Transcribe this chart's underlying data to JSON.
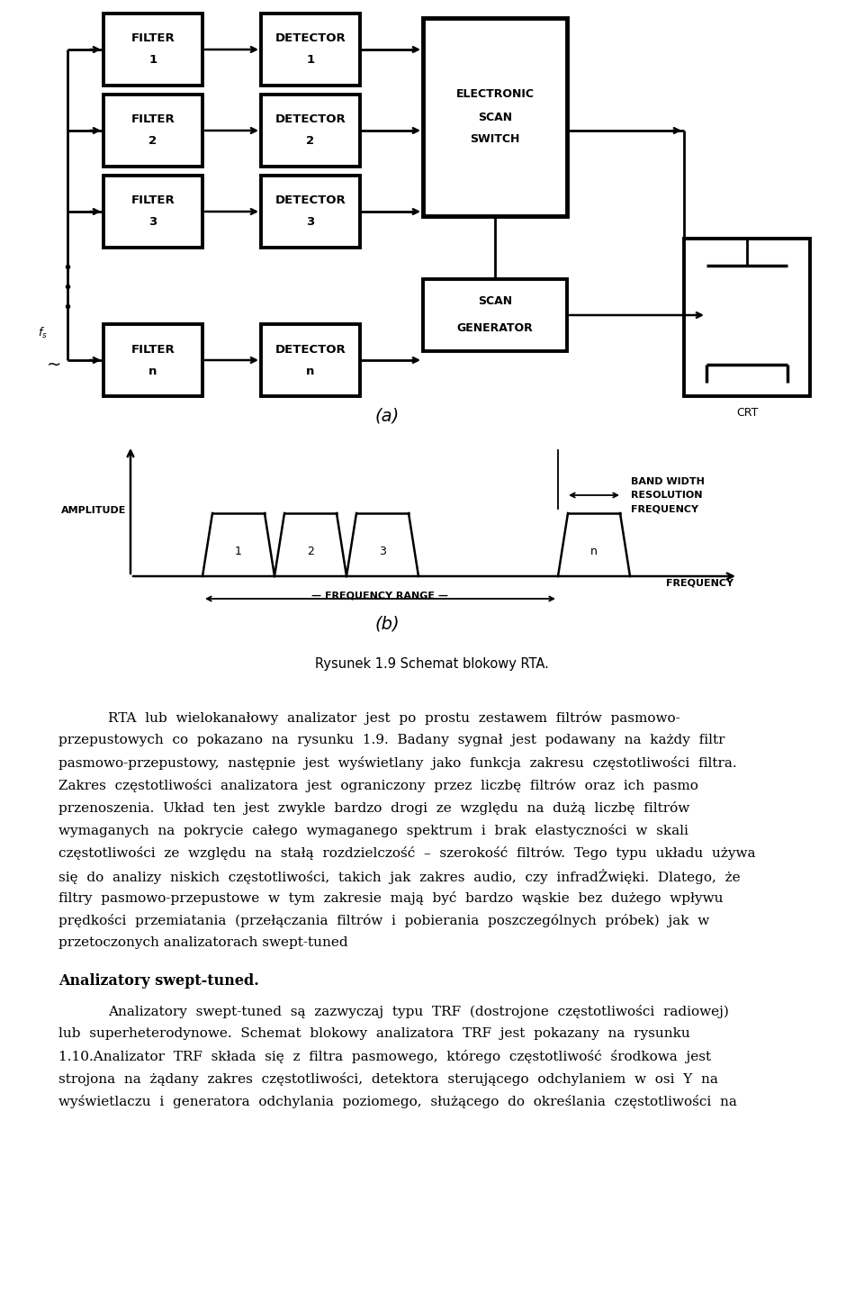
{
  "background_color": "#ffffff",
  "fig_width": 9.6,
  "fig_height": 14.55,
  "caption": "Rysunek 1.9 Schemat blokowy RTA.",
  "p1_lines": [
    "RTA  lub  wielokanałowy  analizator  jest  po  prostu  zestawem  filtrów  pasmowo-",
    "przepustowych  co  pokazano  na  rysunku  1.9.  Badany  sygnał  jest  podawany  na  każdy  filtr",
    "pasmowo-przepustowy,  następnie  jest  wyświetlany  jako  funkcja  zakresu  częstotliwości  filtra.",
    "Zakres  częstotliwości  analizatora  jest  ograniczony  przez  liczbę  filtrów  oraz  ich  pasmo",
    "przenoszenia.  Układ  ten  jest  zwykle  bardzo  drogi  ze  względu  na  dużą  liczbę  filtrów",
    "wymaganych  na  pokrycie  całego  wymaganego  spektrum  i  brak  elastyczności  w  skali",
    "częstotliwości  ze  względu  na  stałą  rozdzielczość  –  szerokość  filtrów.  Tego  typu  układu  używa",
    "się  do  analizy  niskich  częstotliwości,  takich  jak  zakres  audio,  czy  infradŻwięki.  Dlatego,  że",
    "filtry  pasmowo-przepustowe  w  tym  zakresie  mają  być  bardzo  wąskie  bez  dużego  wpływu",
    "prędkości  przemiatania  (przełączania  filtrów  i  pobierania  poszczególnych  próbek)  jak  w",
    "przetoczonych analizatorach swept-tuned"
  ],
  "section_title": "Analizatory swept-tuned.",
  "p2_lines": [
    "Analizatory  swept-tuned  są  zazwyczaj  typu  TRF  (dostrojone  częstotliwości  radiowej)",
    "lub  superheterodynowe.  Schemat  blokowy  analizatora  TRF  jest  pokazany  na  rysunku",
    "1.10.Analizator  TRF  składa  się  z  filtra  pasmowego,  którego  częstotliwość  środkowa  jest",
    "strojona  na  żądany  zakres  częstotliwości,  detektora  sterującego  odchylaniem  w  osi  Y  na",
    "wyświetlaczu  i  generatora  odchylania  poziomego,  służącego  do  określania  częstotliwości  na"
  ]
}
